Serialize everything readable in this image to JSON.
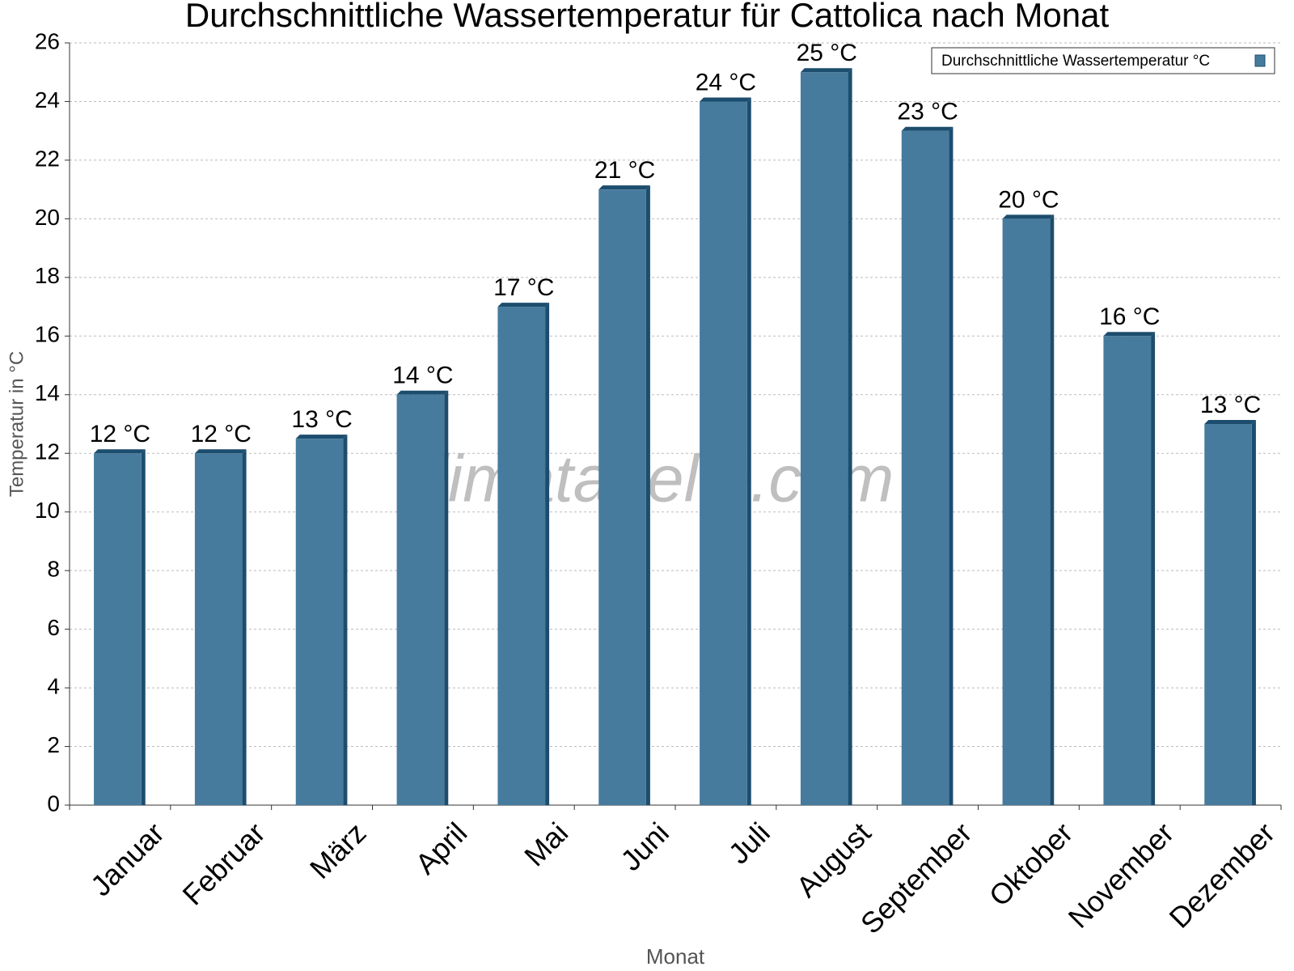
{
  "chart_data": {
    "type": "bar",
    "title": "Durchschnittliche Wassertemperatur für Cattolica nach Monat",
    "xlabel": "Monat",
    "ylabel": "Temperatur in °C",
    "watermark": "klimatabelle.com",
    "categories": [
      "Januar",
      "Februar",
      "März",
      "April",
      "Mai",
      "Juni",
      "Juli",
      "August",
      "September",
      "Oktober",
      "November",
      "Dezember"
    ],
    "series": [
      {
        "name": "Durchschnittliche Wassertemperatur °C",
        "color": "#467b9d",
        "values": [
          12,
          12,
          12.5,
          14,
          17,
          21,
          24,
          25,
          23,
          20,
          16,
          13
        ],
        "value_labels": [
          "12 °C",
          "12 °C",
          "13 °C",
          "14 °C",
          "17 °C",
          "21 °C",
          "24 °C",
          "25 °C",
          "23 °C",
          "20 °C",
          "16 °C",
          "13 °C"
        ]
      }
    ],
    "ylim": [
      0,
      26
    ],
    "yticks": [
      0,
      2,
      4,
      6,
      8,
      10,
      12,
      14,
      16,
      18,
      20,
      22,
      24,
      26
    ],
    "grid": true,
    "legend": "top-right"
  }
}
